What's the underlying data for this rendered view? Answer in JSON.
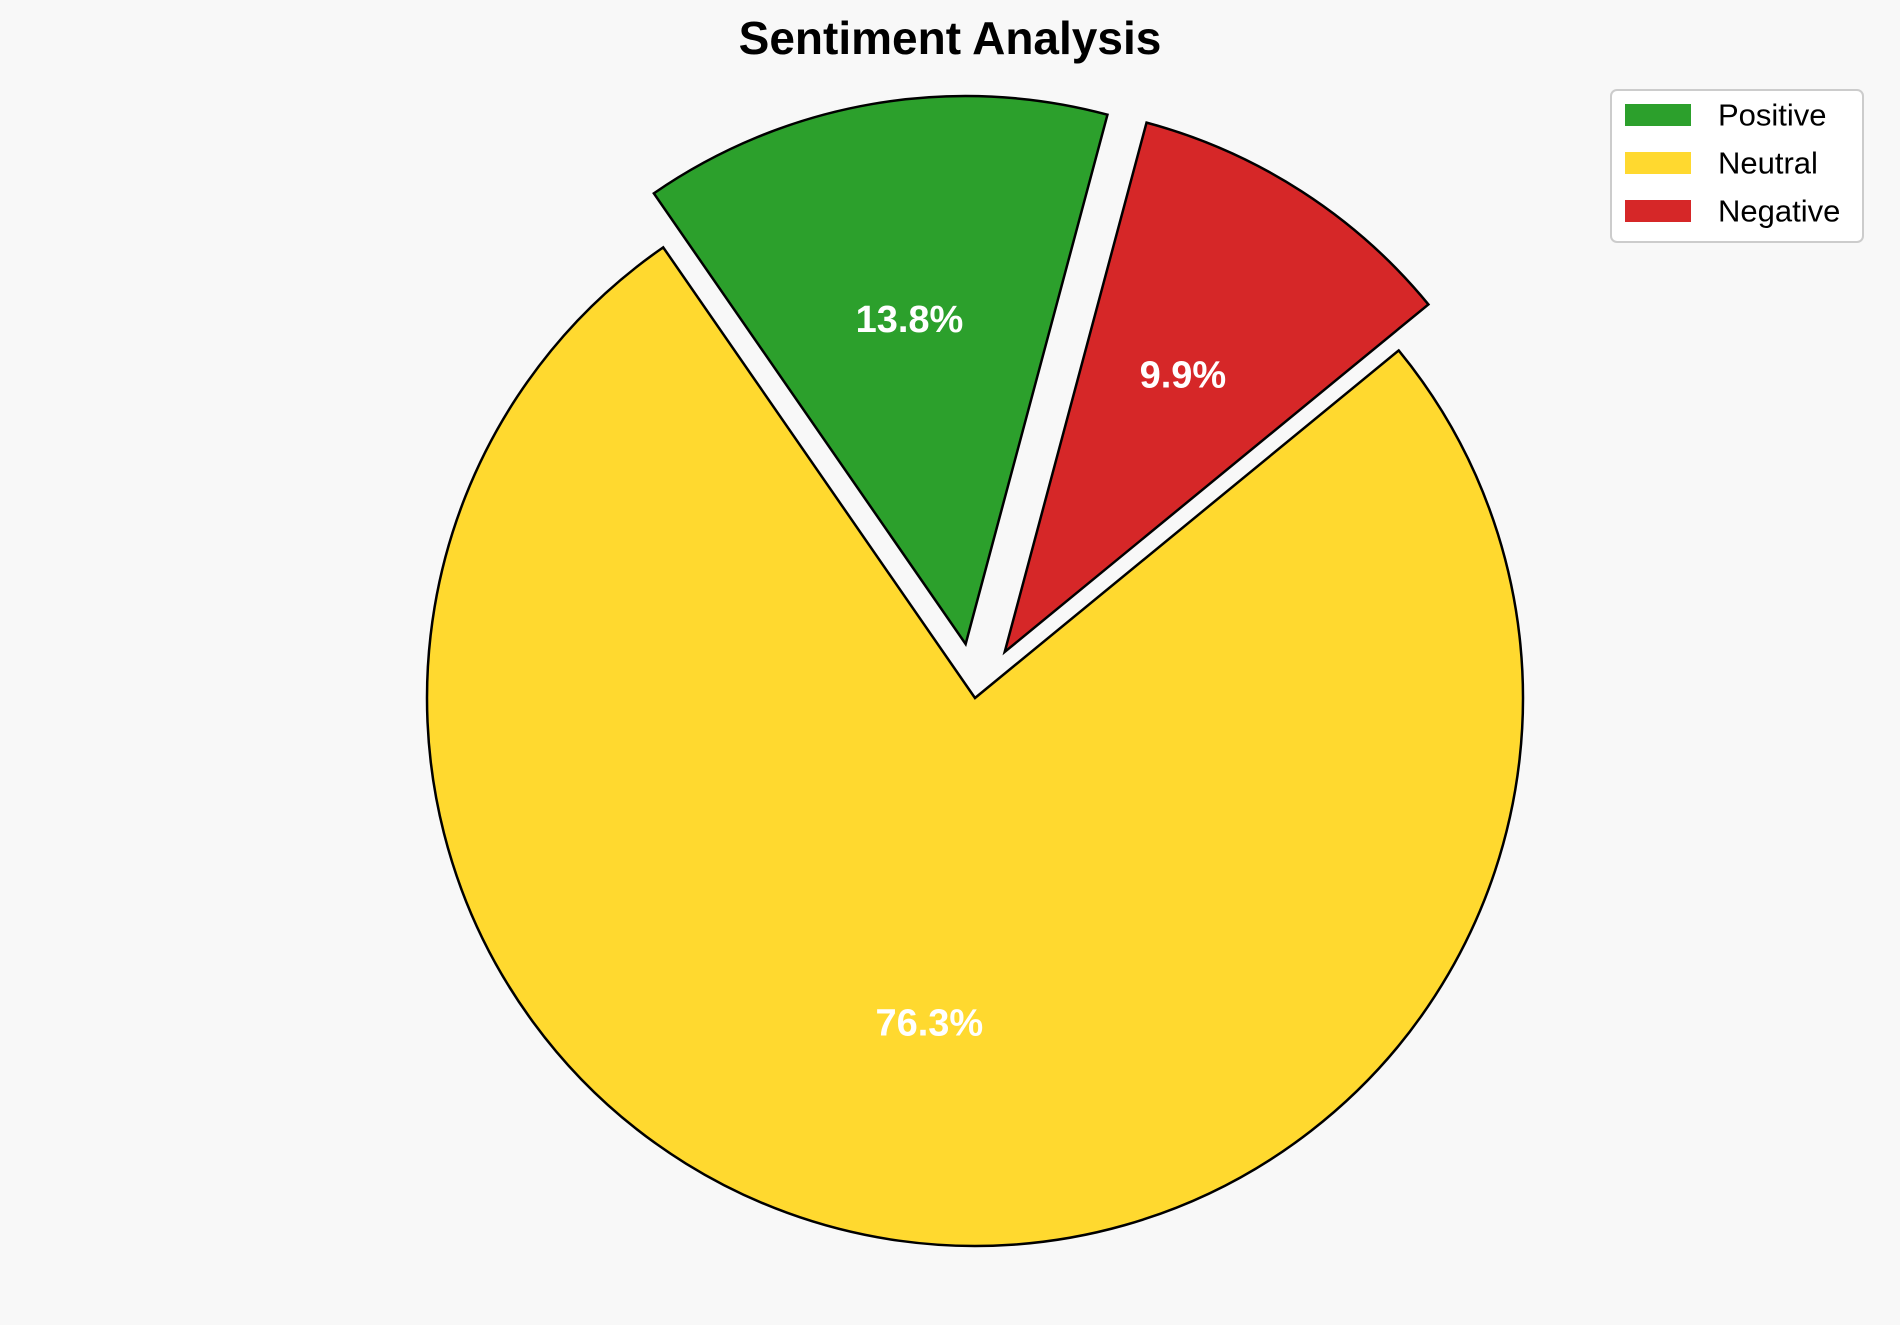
{
  "chart_data": {
    "type": "pie",
    "title": "Sentiment Analysis",
    "categories": [
      "Positive",
      "Neutral",
      "Negative"
    ],
    "values": [
      13.8,
      76.3,
      9.9
    ],
    "labels": [
      "13.8%",
      "76.3%",
      "9.9%"
    ],
    "colors": [
      "#2ca02c",
      "#ffd92f",
      "#d62728"
    ],
    "exploded": [
      true,
      false,
      true
    ],
    "start_angle_deg": 75,
    "direction": "counterclockwise",
    "legend": {
      "placement": "top-right",
      "entries": [
        "Positive",
        "Neutral",
        "Negative"
      ]
    }
  }
}
